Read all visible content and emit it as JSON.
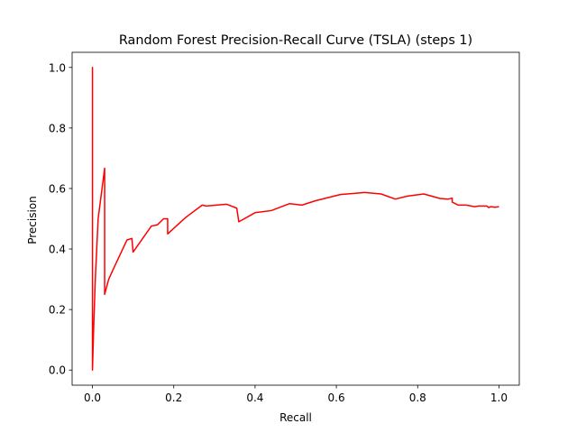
{
  "chart_data": {
    "type": "line",
    "title": "Random Forest Precision-Recall Curve (TSLA) (steps 1)",
    "xlabel": "Recall",
    "ylabel": "Precision",
    "xlim": [
      -0.05,
      1.05
    ],
    "ylim": [
      -0.05,
      1.05
    ],
    "xticks": [
      0.0,
      0.2,
      0.4,
      0.6,
      0.8,
      1.0
    ],
    "yticks": [
      0.0,
      0.2,
      0.4,
      0.6,
      0.8,
      1.0
    ],
    "xtick_labels": [
      "0.0",
      "0.2",
      "0.4",
      "0.6",
      "0.8",
      "1.0"
    ],
    "ytick_labels": [
      "0.0",
      "0.2",
      "0.4",
      "0.6",
      "0.8",
      "1.0"
    ],
    "grid": false,
    "series": [
      {
        "color": "#ff0000",
        "x": [
          0.0,
          0.0,
          0.0,
          0.003,
          0.007,
          0.014,
          0.03,
          0.03,
          0.04,
          0.05,
          0.085,
          0.097,
          0.1,
          0.145,
          0.16,
          0.175,
          0.18,
          0.185,
          0.185,
          0.23,
          0.27,
          0.28,
          0.33,
          0.355,
          0.36,
          0.4,
          0.44,
          0.485,
          0.515,
          0.55,
          0.61,
          0.67,
          0.71,
          0.745,
          0.775,
          0.815,
          0.855,
          0.875,
          0.885,
          0.885,
          0.9,
          0.92,
          0.94,
          0.95,
          0.97,
          0.975,
          0.98,
          0.99,
          1.0
        ],
        "y": [
          0.0,
          1.0,
          0.0,
          0.14,
          0.3,
          0.5,
          0.667,
          0.25,
          0.3,
          0.33,
          0.43,
          0.435,
          0.39,
          0.476,
          0.48,
          0.5,
          0.5,
          0.5,
          0.45,
          0.505,
          0.545,
          0.542,
          0.548,
          0.535,
          0.49,
          0.52,
          0.527,
          0.55,
          0.545,
          0.56,
          0.58,
          0.587,
          0.582,
          0.565,
          0.575,
          0.582,
          0.567,
          0.565,
          0.568,
          0.555,
          0.545,
          0.545,
          0.54,
          0.542,
          0.542,
          0.537,
          0.54,
          0.538,
          0.54
        ]
      }
    ]
  }
}
